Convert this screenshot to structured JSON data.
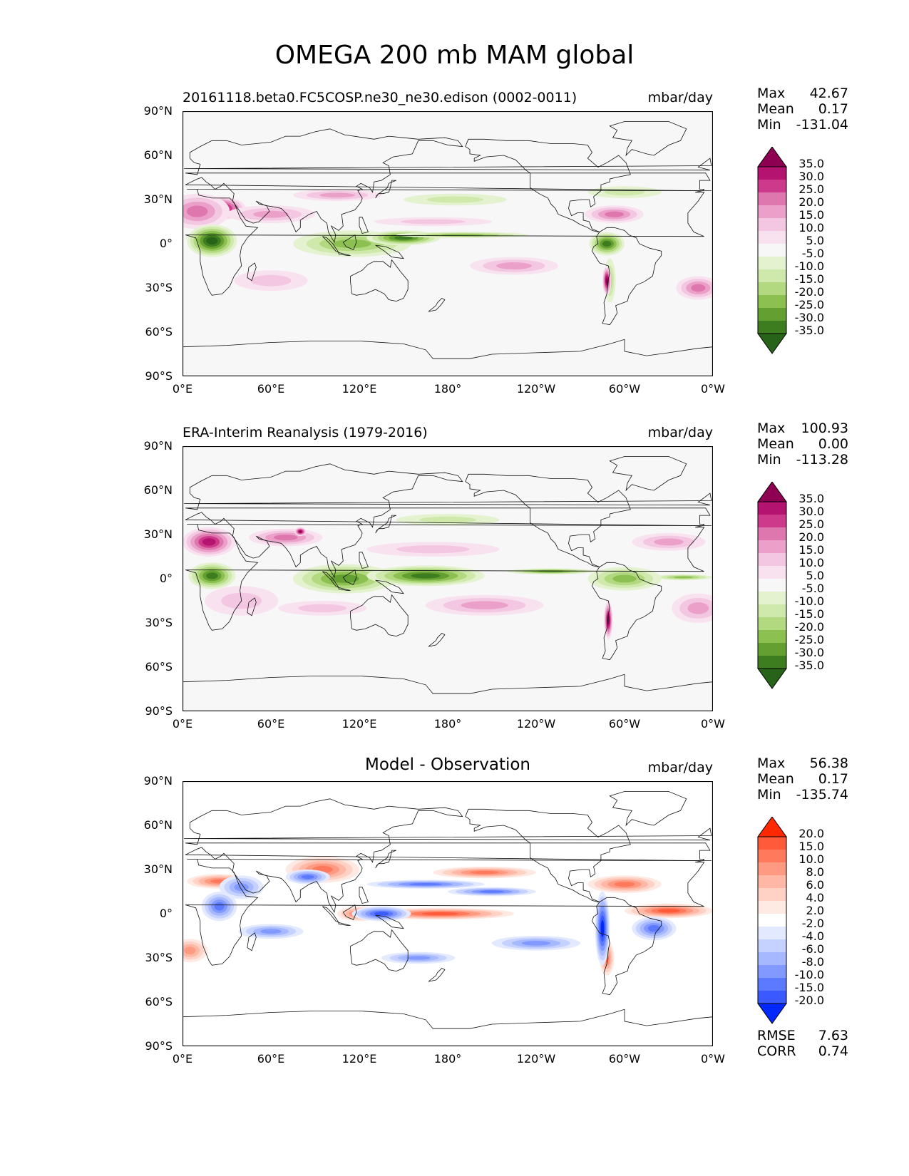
{
  "figure": {
    "title": "OMEGA 200 mb MAM global"
  },
  "chart_data": [
    {
      "type": "heatmap",
      "title": "20161118.beta0.FC5COSP.ne30_ne30.edison (0002-0011)",
      "units": "mbar/day",
      "title_align": "left",
      "palette": "PiYG",
      "xlabel": "",
      "ylabel": "",
      "xlim": [
        0,
        360
      ],
      "ylim": [
        -90,
        90
      ],
      "x_ticks": [
        "0°E",
        "60°E",
        "120°E",
        "180°",
        "120°W",
        "60°W",
        "0°W"
      ],
      "y_ticks": [
        "90°N",
        "60°N",
        "30°N",
        "0°",
        "30°S",
        "60°S",
        "90°S"
      ],
      "stats": {
        "max": "42.67",
        "mean": "0.17",
        "min": "-131.04"
      },
      "colorbar_levels": [
        "35.0",
        "30.0",
        "25.0",
        "20.0",
        "15.0",
        "10.0",
        "5.0",
        "-5.0",
        "-10.0",
        "-15.0",
        "-20.0",
        "-25.0",
        "-30.0",
        "-35.0"
      ],
      "colorbar_colors": [
        "#8e0152",
        "#b4136f",
        "#cd3a8b",
        "#de77ae",
        "#eaa0c9",
        "#f3c7e1",
        "#f9e2ef",
        "#f7f7f7",
        "#e4f2d0",
        "#cfe9ad",
        "#b2d880",
        "#8cc152",
        "#649f32",
        "#3e7d1f",
        "#276419"
      ],
      "features": [
        {
          "kind": "pos",
          "lon": 25,
          "lat": 24,
          "rx": 18,
          "ry": 8,
          "v": 38
        },
        {
          "kind": "pos",
          "lon": 10,
          "lat": 22,
          "rx": 22,
          "ry": 12,
          "v": 20
        },
        {
          "kind": "pos",
          "lon": 60,
          "lat": 20,
          "rx": 30,
          "ry": 6,
          "v": 15
        },
        {
          "kind": "pos",
          "lon": 105,
          "lat": 33,
          "rx": 30,
          "ry": 4,
          "v": 16
        },
        {
          "kind": "neg",
          "lon": 20,
          "lat": 2,
          "rx": 17,
          "ry": 11,
          "v": -35
        },
        {
          "kind": "neg",
          "lon": 115,
          "lat": 0,
          "rx": 40,
          "ry": 9,
          "v": -22
        },
        {
          "kind": "neg",
          "lon": 150,
          "lat": 4,
          "rx": 25,
          "ry": 5,
          "v": -30
        },
        {
          "kind": "neg",
          "lon": 190,
          "lat": 6,
          "rx": 45,
          "ry": 2,
          "v": -24
        },
        {
          "kind": "neg",
          "lon": 288,
          "lat": 0,
          "rx": 12,
          "ry": 8,
          "v": -30
        },
        {
          "kind": "neg",
          "lon": 290,
          "lat": -25,
          "rx": 4,
          "ry": 15,
          "v": -18
        },
        {
          "kind": "pos",
          "lon": 293,
          "lat": 20,
          "rx": 20,
          "ry": 6,
          "v": 20
        },
        {
          "kind": "pos",
          "lon": 350,
          "lat": -30,
          "rx": 15,
          "ry": 8,
          "v": 20
        },
        {
          "kind": "pos",
          "lon": 225,
          "lat": -15,
          "rx": 30,
          "ry": 6,
          "v": 15
        },
        {
          "kind": "pos",
          "lon": 60,
          "lat": -25,
          "rx": 25,
          "ry": 7,
          "v": 12
        },
        {
          "kind": "neg",
          "lon": 185,
          "lat": 30,
          "rx": 35,
          "ry": 4,
          "v": -10
        },
        {
          "kind": "neg",
          "lon": 300,
          "lat": 35,
          "rx": 25,
          "ry": 4,
          "v": -10
        },
        {
          "kind": "pos",
          "lon": 170,
          "lat": 15,
          "rx": 40,
          "ry": 3,
          "v": 12
        },
        {
          "kind": "pos",
          "lon": 288,
          "lat": -25,
          "rx": 3,
          "ry": 10,
          "v": 35
        }
      ]
    },
    {
      "type": "heatmap",
      "title": "ERA-Interim Reanalysis (1979-2016)",
      "units": "mbar/day",
      "title_align": "left",
      "palette": "PiYG",
      "xlabel": "",
      "ylabel": "",
      "xlim": [
        0,
        360
      ],
      "ylim": [
        -90,
        90
      ],
      "x_ticks": [
        "0°E",
        "60°E",
        "120°E",
        "180°",
        "120°W",
        "60°W",
        "0°W"
      ],
      "y_ticks": [
        "90°N",
        "60°N",
        "30°N",
        "0°",
        "30°S",
        "60°S",
        "90°S"
      ],
      "stats": {
        "max": "100.93",
        "mean": "0.00",
        "min": "-113.28"
      },
      "colorbar_levels": [
        "35.0",
        "30.0",
        "25.0",
        "20.0",
        "15.0",
        "10.0",
        "5.0",
        "-5.0",
        "-10.0",
        "-15.0",
        "-20.0",
        "-25.0",
        "-30.0",
        "-35.0"
      ],
      "colorbar_colors": [
        "#8e0152",
        "#b4136f",
        "#cd3a8b",
        "#de77ae",
        "#eaa0c9",
        "#f3c7e1",
        "#f9e2ef",
        "#f7f7f7",
        "#e4f2d0",
        "#cfe9ad",
        "#b2d880",
        "#8cc152",
        "#649f32",
        "#3e7d1f",
        "#276419"
      ],
      "features": [
        {
          "kind": "pos",
          "lon": 18,
          "lat": 25,
          "rx": 18,
          "ry": 10,
          "v": 30
        },
        {
          "kind": "pos",
          "lon": 70,
          "lat": 28,
          "rx": 25,
          "ry": 6,
          "v": 22
        },
        {
          "kind": "pos",
          "lon": 80,
          "lat": 32,
          "rx": 4,
          "ry": 3,
          "v": 38
        },
        {
          "kind": "neg",
          "lon": 20,
          "lat": 2,
          "rx": 16,
          "ry": 9,
          "v": -33
        },
        {
          "kind": "neg",
          "lon": 110,
          "lat": 0,
          "rx": 35,
          "ry": 10,
          "v": -25
        },
        {
          "kind": "neg",
          "lon": 165,
          "lat": 2,
          "rx": 40,
          "ry": 7,
          "v": -30
        },
        {
          "kind": "neg",
          "lon": 250,
          "lat": 5,
          "rx": 30,
          "ry": 2,
          "v": -25
        },
        {
          "kind": "neg",
          "lon": 300,
          "lat": 0,
          "rx": 25,
          "ry": 8,
          "v": -22
        },
        {
          "kind": "neg",
          "lon": 340,
          "lat": 1,
          "rx": 20,
          "ry": 2,
          "v": -20
        },
        {
          "kind": "pos",
          "lon": 289,
          "lat": -28,
          "rx": 3,
          "ry": 13,
          "v": 38
        },
        {
          "kind": "pos",
          "lon": 350,
          "lat": -20,
          "rx": 18,
          "ry": 10,
          "v": 18
        },
        {
          "kind": "pos",
          "lon": 205,
          "lat": -18,
          "rx": 40,
          "ry": 7,
          "v": 15
        },
        {
          "kind": "pos",
          "lon": 170,
          "lat": 20,
          "rx": 45,
          "ry": 5,
          "v": 14
        },
        {
          "kind": "pos",
          "lon": 40,
          "lat": -15,
          "rx": 25,
          "ry": 10,
          "v": 12
        },
        {
          "kind": "pos",
          "lon": 95,
          "lat": -20,
          "rx": 30,
          "ry": 5,
          "v": 12
        },
        {
          "kind": "neg",
          "lon": 180,
          "lat": 40,
          "rx": 35,
          "ry": 4,
          "v": -10
        },
        {
          "kind": "pos",
          "lon": 330,
          "lat": 25,
          "rx": 25,
          "ry": 6,
          "v": 15
        }
      ]
    },
    {
      "type": "heatmap",
      "title": "Model - Observation",
      "units": "mbar/day",
      "title_align": "center",
      "palette": "bwr",
      "xlabel": "",
      "ylabel": "",
      "xlim": [
        0,
        360
      ],
      "ylim": [
        -90,
        90
      ],
      "x_ticks": [
        "0°E",
        "60°E",
        "120°E",
        "180°",
        "120°W",
        "60°W",
        "0°W"
      ],
      "y_ticks": [
        "90°N",
        "60°N",
        "30°N",
        "0°",
        "30°S",
        "60°S",
        "90°S"
      ],
      "stats": {
        "max": "56.38",
        "mean": "0.17",
        "min": "-135.74"
      },
      "metrics": {
        "rmse": "7.63",
        "corr": "0.74"
      },
      "colorbar_levels": [
        "20.0",
        "15.0",
        "10.0",
        "8.0",
        "6.0",
        "4.0",
        "2.0",
        "-2.0",
        "-4.0",
        "-6.0",
        "-8.0",
        "-10.0",
        "-15.0",
        "-20.0"
      ],
      "colorbar_colors": [
        "#ff2800",
        "#ff5a3a",
        "#ff7a5c",
        "#ff9a82",
        "#ffb8a6",
        "#ffd2c5",
        "#ffeae3",
        "#ffffff",
        "#e3e9ff",
        "#c5d1ff",
        "#a6b8ff",
        "#829aff",
        "#5c7aff",
        "#3a5aff",
        "#0028ff"
      ],
      "features": [
        {
          "kind": "pos",
          "lon": 175,
          "lat": 0,
          "rx": 50,
          "ry": 4,
          "v": 16
        },
        {
          "kind": "pos",
          "lon": 330,
          "lat": 2,
          "rx": 30,
          "ry": 5,
          "v": 18
        },
        {
          "kind": "pos",
          "lon": 95,
          "lat": 30,
          "rx": 25,
          "ry": 9,
          "v": 14
        },
        {
          "kind": "pos",
          "lon": 205,
          "lat": 28,
          "rx": 35,
          "ry": 4,
          "v": 10
        },
        {
          "kind": "pos",
          "lon": 300,
          "lat": 20,
          "rx": 25,
          "ry": 6,
          "v": 14
        },
        {
          "kind": "pos",
          "lon": 25,
          "lat": 22,
          "rx": 22,
          "ry": 5,
          "v": 10
        },
        {
          "kind": "pos",
          "lon": 120,
          "lat": 0,
          "rx": 15,
          "ry": 5,
          "v": 12
        },
        {
          "kind": "pos",
          "lon": 288,
          "lat": -30,
          "rx": 5,
          "ry": 12,
          "v": 14
        },
        {
          "kind": "pos",
          "lon": 5,
          "lat": -25,
          "rx": 12,
          "ry": 8,
          "v": 8
        },
        {
          "kind": "neg",
          "lon": 25,
          "lat": 5,
          "rx": 12,
          "ry": 10,
          "v": -12
        },
        {
          "kind": "neg",
          "lon": 135,
          "lat": 0,
          "rx": 20,
          "ry": 5,
          "v": -18
        },
        {
          "kind": "neg",
          "lon": 285,
          "lat": -10,
          "rx": 5,
          "ry": 25,
          "v": -20
        },
        {
          "kind": "neg",
          "lon": 165,
          "lat": 20,
          "rx": 40,
          "ry": 3,
          "v": -10
        },
        {
          "kind": "neg",
          "lon": 210,
          "lat": 15,
          "rx": 30,
          "ry": 3,
          "v": -10
        },
        {
          "kind": "neg",
          "lon": 60,
          "lat": -12,
          "rx": 22,
          "ry": 5,
          "v": -8
        },
        {
          "kind": "neg",
          "lon": 160,
          "lat": -30,
          "rx": 25,
          "ry": 4,
          "v": -8
        },
        {
          "kind": "neg",
          "lon": 240,
          "lat": -20,
          "rx": 30,
          "ry": 5,
          "v": -8
        },
        {
          "kind": "neg",
          "lon": 320,
          "lat": -10,
          "rx": 15,
          "ry": 8,
          "v": -10
        },
        {
          "kind": "neg",
          "lon": 85,
          "lat": 25,
          "rx": 15,
          "ry": 5,
          "v": -10
        },
        {
          "kind": "neg",
          "lon": 40,
          "lat": 18,
          "rx": 15,
          "ry": 8,
          "v": -8
        }
      ]
    }
  ]
}
